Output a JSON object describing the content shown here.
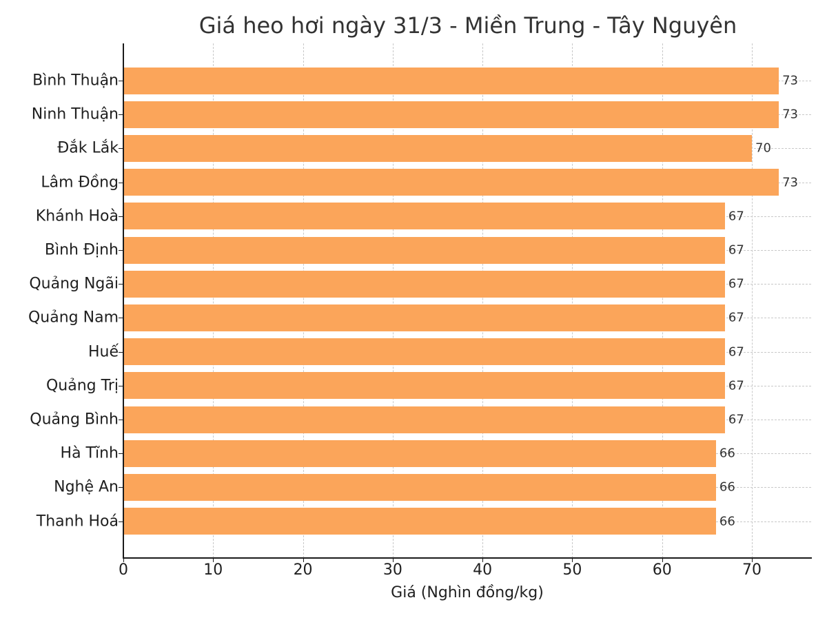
{
  "chart_data": {
    "type": "bar",
    "orientation": "horizontal",
    "title": "Giá heo hơi ngày 31/3 - Miền Trung - Tây Nguyên",
    "xlabel": "Giá (Nghìn đồng/kg)",
    "ylabel": "",
    "categories": [
      "Bình Thuận",
      "Ninh Thuận",
      "Đắk Lắk",
      "Lâm Đồng",
      "Khánh Hoà",
      "Bình Định",
      "Quảng Ngãi",
      "Quảng Nam",
      "Huế",
      "Quảng Trị",
      "Quảng Bình",
      "Hà Tĩnh",
      "Nghệ An",
      "Thanh Hoá"
    ],
    "values": [
      73,
      73,
      70,
      73,
      67,
      67,
      67,
      67,
      67,
      67,
      67,
      66,
      66,
      66
    ],
    "data_labels": [
      "73",
      "73",
      "70",
      "73",
      "67",
      "67",
      "67",
      "67",
      "67",
      "67",
      "67",
      "66",
      "66",
      "66"
    ],
    "xlim": [
      0,
      76.6
    ],
    "xticks": [
      0,
      10,
      20,
      30,
      40,
      50,
      60,
      70
    ],
    "xtick_labels": [
      "0",
      "10",
      "20",
      "30",
      "40",
      "50",
      "60",
      "70"
    ],
    "grid": {
      "x": true,
      "y": true,
      "style": "dashed"
    },
    "legend": null,
    "bar_color": "#fba55a"
  }
}
